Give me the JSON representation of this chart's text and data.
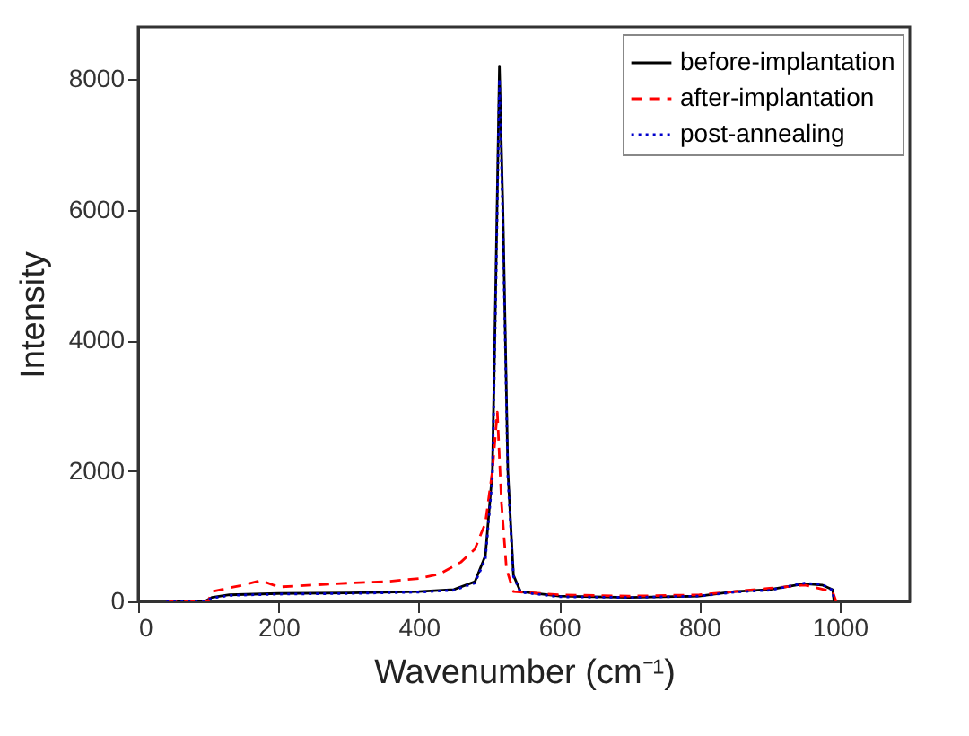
{
  "chart_data": {
    "type": "line",
    "xlabel": "Wavenumber (cm⁻¹)",
    "ylabel": "Intensity",
    "xlim": [
      0,
      1100
    ],
    "ylim": [
      0,
      8800
    ],
    "xticks": [
      0,
      200,
      400,
      600,
      800,
      1000
    ],
    "yticks": [
      0,
      2000,
      4000,
      6000,
      8000
    ],
    "legend": "top right",
    "marker": "none",
    "series": [
      {
        "name": "before-implantation",
        "color": "#000000",
        "line_style": "solid",
        "x": [
          40,
          95,
          105,
          130,
          200,
          300,
          400,
          450,
          480,
          495,
          505,
          510,
          515,
          520,
          527,
          535,
          545,
          600,
          700,
          800,
          850,
          900,
          950,
          975,
          990,
          992
        ],
        "values": [
          0,
          0,
          60,
          100,
          120,
          130,
          150,
          180,
          300,
          700,
          2000,
          5000,
          8200,
          6000,
          2000,
          400,
          150,
          80,
          60,
          80,
          150,
          180,
          270,
          250,
          180,
          0
        ]
      },
      {
        "name": "after-implantation",
        "color": "#ff0000",
        "line_style": "dashed",
        "x": [
          40,
          100,
          105,
          150,
          175,
          200,
          250,
          300,
          350,
          400,
          430,
          460,
          480,
          495,
          505,
          512,
          518,
          525,
          535,
          600,
          700,
          800,
          850,
          900,
          950,
          990,
          995
        ],
        "values": [
          0,
          0,
          150,
          250,
          320,
          220,
          250,
          280,
          300,
          350,
          420,
          600,
          800,
          1200,
          2000,
          2900,
          1500,
          500,
          150,
          100,
          80,
          100,
          150,
          200,
          250,
          150,
          0
        ]
      },
      {
        "name": "post-annealing",
        "color": "#0000cc",
        "line_style": "dotted",
        "x": [
          40,
          95,
          105,
          130,
          200,
          300,
          400,
          450,
          480,
          495,
          505,
          510,
          515,
          520,
          527,
          535,
          545,
          600,
          700,
          800,
          850,
          900,
          950,
          975,
          990,
          992
        ],
        "values": [
          0,
          0,
          50,
          90,
          110,
          120,
          140,
          170,
          280,
          650,
          1900,
          4800,
          8000,
          5800,
          1900,
          380,
          140,
          70,
          60,
          80,
          140,
          170,
          280,
          260,
          170,
          0
        ]
      }
    ]
  }
}
